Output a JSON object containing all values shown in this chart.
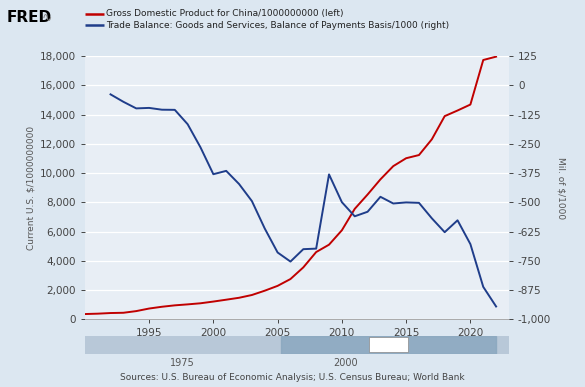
{
  "legend1": "Gross Domestic Product for China/1000000000 (left)",
  "legend2": "Trade Balance: Goods and Services, Balance of Payments Basis/1000 (right)",
  "ylabel_left": "Current U.S. $/1000000000",
  "ylabel_right": "Mil. of $/1000",
  "source": "Sources: U.S. Bureau of Economic Analysis; U.S. Census Bureau; World Bank",
  "background_color": "#dce7f1",
  "plot_bg_color": "#e8eef5",
  "color_china_gdp": "#c00000",
  "color_trade": "#1f3d8a",
  "ylim_left": [
    0,
    18000
  ],
  "ylim_right": [
    -1000,
    125
  ],
  "yticks_left": [
    0,
    2000,
    4000,
    6000,
    8000,
    10000,
    12000,
    14000,
    16000,
    18000
  ],
  "yticks_right": [
    -1000,
    -875,
    -750,
    -625,
    -500,
    -375,
    -250,
    -125,
    0,
    125
  ],
  "china_gdp_years": [
    1990,
    1991,
    1992,
    1993,
    1994,
    1995,
    1996,
    1997,
    1998,
    1999,
    2000,
    2001,
    2002,
    2003,
    2004,
    2005,
    2006,
    2007,
    2008,
    2009,
    2010,
    2011,
    2012,
    2013,
    2014,
    2015,
    2016,
    2017,
    2018,
    2019,
    2020,
    2021,
    2022
  ],
  "china_gdp_values": [
    357.7,
    383.4,
    426.9,
    444.7,
    559.2,
    734.5,
    856.1,
    952.7,
    1019.5,
    1094.0,
    1211.3,
    1339.4,
    1470.6,
    1660.3,
    1955.3,
    2285.9,
    2752.1,
    3550.0,
    4598.2,
    5101.7,
    6087.2,
    7551.5,
    8532.2,
    9570.4,
    10475.7,
    11015.5,
    11233.3,
    12310.4,
    13894.8,
    14279.9,
    14687.7,
    17734.1,
    17963.2
  ],
  "trade_years": [
    1992,
    1993,
    1994,
    1995,
    1996,
    1997,
    1998,
    1999,
    2000,
    2001,
    2002,
    2003,
    2004,
    2005,
    2006,
    2007,
    2008,
    2009,
    2010,
    2011,
    2012,
    2013,
    2014,
    2015,
    2016,
    2017,
    2018,
    2019,
    2020,
    2021,
    2022
  ],
  "trade_values": [
    -38.5,
    -70.3,
    -98.5,
    -96.4,
    -104.1,
    -104.7,
    -166.1,
    -265.1,
    -379.8,
    -365.6,
    -421.7,
    -494.8,
    -612.1,
    -714.5,
    -753.3,
    -700.3,
    -698.0,
    -380.7,
    -499.4,
    -559.8,
    -540.4,
    -476.4,
    -505.0,
    -500.4,
    -502.3,
    -568.4,
    -627.7,
    -576.9,
    -678.7,
    -861.4,
    -945.3
  ],
  "xlim": [
    1990,
    2023
  ],
  "xtick_years": [
    1995,
    2000,
    2005,
    2010,
    2015,
    2020
  ],
  "mini_xlim": [
    1960,
    2025
  ],
  "mini_xticks": [
    1975,
    2000
  ]
}
